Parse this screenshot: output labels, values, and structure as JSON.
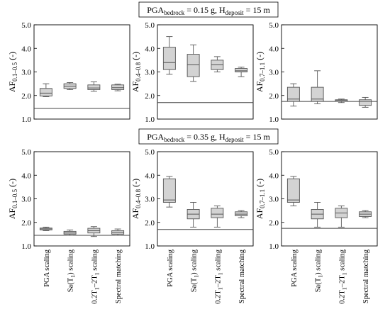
{
  "row_titles": [
    {
      "pre": "PGA",
      "sub1": "bedrock",
      "mid": " = 0.15 g, H",
      "sub2": "deposit",
      "post": " = 15 m"
    },
    {
      "pre": "PGA",
      "sub1": "bedrock",
      "mid": " = 0.35 g, H",
      "sub2": "deposit",
      "post": " = 15 m"
    }
  ],
  "chart_data": [
    {
      "type": "box",
      "row": 0,
      "col": 0,
      "ylabel": {
        "main": "AF",
        "sub": "0.1–0.5",
        "unit": " (-)"
      },
      "ylim": [
        1.0,
        5.0
      ],
      "yticks": [
        "1.0",
        "2.0",
        "3.0",
        "4.0",
        "5.0"
      ],
      "reference_line": 1.45,
      "boxes": [
        {
          "min": 1.95,
          "q1": 1.98,
          "median": 2.1,
          "q3": 2.3,
          "max": 2.5
        },
        {
          "min": 2.25,
          "q1": 2.3,
          "median": 2.4,
          "q3": 2.5,
          "max": 2.55
        },
        {
          "min": 2.18,
          "q1": 2.25,
          "median": 2.32,
          "q3": 2.45,
          "max": 2.58
        },
        {
          "min": 2.2,
          "q1": 2.25,
          "median": 2.33,
          "q3": 2.45,
          "max": 2.48
        }
      ]
    },
    {
      "type": "box",
      "row": 0,
      "col": 1,
      "ylabel": {
        "main": "AF",
        "sub": "0.4–0.8",
        "unit": " (-)"
      },
      "ylim": [
        1.0,
        5.0
      ],
      "yticks": [
        "1.0",
        "2.0",
        "3.0",
        "4.0",
        "5.0"
      ],
      "reference_line": 1.7,
      "boxes": [
        {
          "min": 2.9,
          "q1": 3.1,
          "median": 3.4,
          "q3": 4.05,
          "max": 4.5
        },
        {
          "min": 2.6,
          "q1": 2.8,
          "median": 3.3,
          "q3": 3.75,
          "max": 4.15
        },
        {
          "min": 3.0,
          "q1": 3.1,
          "median": 3.3,
          "q3": 3.5,
          "max": 3.65
        },
        {
          "min": 2.8,
          "q1": 3.0,
          "median": 3.05,
          "q3": 3.15,
          "max": 3.2
        }
      ]
    },
    {
      "type": "box",
      "row": 0,
      "col": 2,
      "ylabel": {
        "main": "AF",
        "sub": "0.7–1.1",
        "unit": " (-)"
      },
      "ylim": [
        1.0,
        5.0
      ],
      "yticks": [
        "1.0",
        "2.0",
        "3.0",
        "4.0",
        "5.0"
      ],
      "reference_line": 1.75,
      "boxes": [
        {
          "min": 1.55,
          "q1": 1.75,
          "median": 1.85,
          "q3": 2.35,
          "max": 2.5
        },
        {
          "min": 1.65,
          "q1": 1.75,
          "median": 1.85,
          "q3": 2.35,
          "max": 3.05
        },
        {
          "min": 1.7,
          "q1": 1.75,
          "median": 1.8,
          "q3": 1.82,
          "max": 1.85
        },
        {
          "min": 1.5,
          "q1": 1.58,
          "median": 1.75,
          "q3": 1.82,
          "max": 1.92
        }
      ]
    },
    {
      "type": "box",
      "row": 1,
      "col": 0,
      "ylabel": {
        "main": "AF",
        "sub": "0.1–0.5",
        "unit": " (-)"
      },
      "ylim": [
        1.0,
        5.0
      ],
      "yticks": [
        "1.0",
        "2.0",
        "3.0",
        "4.0",
        "5.0"
      ],
      "reference_line": 1.45,
      "boxes": [
        {
          "min": 1.65,
          "q1": 1.68,
          "median": 1.72,
          "q3": 1.76,
          "max": 1.8
        },
        {
          "min": 1.45,
          "q1": 1.5,
          "median": 1.55,
          "q3": 1.62,
          "max": 1.68
        },
        {
          "min": 1.4,
          "q1": 1.55,
          "median": 1.65,
          "q3": 1.75,
          "max": 1.82
        },
        {
          "min": 1.45,
          "q1": 1.5,
          "median": 1.58,
          "q3": 1.65,
          "max": 1.72
        }
      ]
    },
    {
      "type": "box",
      "row": 1,
      "col": 1,
      "ylabel": {
        "main": "AF",
        "sub": "0.4–0.8",
        "unit": " (-)"
      },
      "ylim": [
        1.0,
        5.0
      ],
      "yticks": [
        "1.0",
        "2.0",
        "3.0",
        "4.0",
        "5.0"
      ],
      "reference_line": 1.7,
      "boxes": [
        {
          "min": 2.65,
          "q1": 2.85,
          "median": 2.95,
          "q3": 3.85,
          "max": 3.95
        },
        {
          "min": 1.8,
          "q1": 2.15,
          "median": 2.35,
          "q3": 2.55,
          "max": 2.85
        },
        {
          "min": 1.8,
          "q1": 2.2,
          "median": 2.35,
          "q3": 2.6,
          "max": 2.7
        },
        {
          "min": 2.2,
          "q1": 2.28,
          "median": 2.35,
          "q3": 2.45,
          "max": 2.5
        }
      ]
    },
    {
      "type": "box",
      "row": 1,
      "col": 2,
      "ylabel": {
        "main": "AF",
        "sub": "0.7–1.1",
        "unit": " (-)"
      },
      "ylim": [
        1.0,
        5.0
      ],
      "yticks": [
        "1.0",
        "2.0",
        "3.0",
        "4.0",
        "5.0"
      ],
      "reference_line": 1.75,
      "boxes": [
        {
          "min": 2.7,
          "q1": 2.85,
          "median": 2.95,
          "q3": 3.85,
          "max": 3.95
        },
        {
          "min": 1.8,
          "q1": 2.15,
          "median": 2.35,
          "q3": 2.55,
          "max": 2.85
        },
        {
          "min": 1.8,
          "q1": 2.2,
          "median": 2.4,
          "q3": 2.6,
          "max": 2.7
        },
        {
          "min": 2.2,
          "q1": 2.25,
          "median": 2.35,
          "q3": 2.45,
          "max": 2.5
        }
      ]
    }
  ],
  "categories": [
    {
      "main": "PGA scaling"
    },
    {
      "main": "Sa(T",
      "sub": "1",
      "post": ") scaling"
    },
    {
      "main": "0.2T",
      "sub": "1",
      "mid": "–2T",
      "sub2": "1",
      "post": " scaling"
    },
    {
      "main": "Spectral matching"
    }
  ],
  "colors": {
    "box_fill": "#d3d3d3",
    "stroke": "#555555",
    "ref_line": "#444444"
  }
}
